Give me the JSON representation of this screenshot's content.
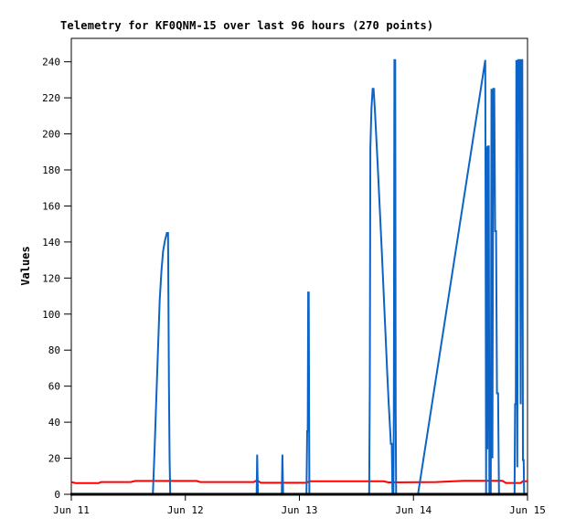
{
  "chart_data": {
    "type": "line",
    "title": "Telemetry for KF0QNM-15 over last 96 hours (270 points)",
    "ylabel": "Values",
    "xlabel": "",
    "grid": false,
    "legend": "none",
    "ylim": [
      0,
      253
    ],
    "xlim_days": [
      0,
      4
    ],
    "y_ticks": [
      0,
      20,
      40,
      60,
      80,
      100,
      120,
      140,
      160,
      180,
      200,
      220,
      240
    ],
    "x_ticks": {
      "labels": [
        "Jun 11",
        "Jun 12",
        "Jun 13",
        "Jun 14",
        "Jun 15"
      ],
      "days": [
        0,
        1,
        2,
        3,
        4
      ]
    },
    "colors": {
      "series_blue": "#0c64c8",
      "series_red": "#ff0000",
      "axis": "#000000",
      "text": "#000000",
      "background": "#ffffff"
    },
    "series": [
      {
        "name": "red",
        "color_key": "series_red",
        "stroke_width": 2,
        "points": [
          [
            0,
            6.8
          ],
          [
            0.04,
            6.2
          ],
          [
            0.24,
            6.2
          ],
          [
            0.26,
            6.8
          ],
          [
            0.52,
            6.8
          ],
          [
            0.56,
            7.4
          ],
          [
            1.1,
            7.4
          ],
          [
            1.13,
            6.8
          ],
          [
            1.6,
            6.8
          ],
          [
            1.63,
            7.8
          ],
          [
            1.66,
            6.4
          ],
          [
            2.06,
            6.4
          ],
          [
            2.09,
            7.2
          ],
          [
            2.74,
            7.2
          ],
          [
            2.78,
            6.6
          ],
          [
            3.2,
            6.8
          ],
          [
            3.44,
            7.5
          ],
          [
            3.78,
            7.5
          ],
          [
            3.81,
            6.3
          ],
          [
            3.94,
            6.3
          ],
          [
            3.96,
            7.2
          ],
          [
            4.0,
            7.2
          ]
        ]
      },
      {
        "name": "blue",
        "color_key": "series_blue",
        "stroke_width": 2,
        "points": [
          [
            0,
            0
          ],
          [
            0.715,
            0
          ],
          [
            0.73,
            25
          ],
          [
            0.745,
            52
          ],
          [
            0.76,
            80
          ],
          [
            0.775,
            108
          ],
          [
            0.79,
            124
          ],
          [
            0.805,
            135
          ],
          [
            0.822,
            141
          ],
          [
            0.838,
            145
          ],
          [
            0.848,
            145
          ],
          [
            0.856,
            60
          ],
          [
            0.862,
            20
          ],
          [
            0.867,
            0
          ],
          [
            1.625,
            0
          ],
          [
            1.63,
            22
          ],
          [
            1.636,
            0
          ],
          [
            1.845,
            0
          ],
          [
            1.851,
            22
          ],
          [
            1.857,
            0
          ],
          [
            2.062,
            0
          ],
          [
            2.068,
            35
          ],
          [
            2.073,
            35
          ],
          [
            2.077,
            112
          ],
          [
            2.082,
            112
          ],
          [
            2.087,
            0
          ],
          [
            2.612,
            0
          ],
          [
            2.617,
            60
          ],
          [
            2.622,
            192
          ],
          [
            2.632,
            214
          ],
          [
            2.642,
            225
          ],
          [
            2.65,
            225
          ],
          [
            2.662,
            213
          ],
          [
            2.674,
            198
          ],
          [
            2.686,
            183
          ],
          [
            2.698,
            167
          ],
          [
            2.71,
            151
          ],
          [
            2.722,
            135
          ],
          [
            2.734,
            118
          ],
          [
            2.746,
            101
          ],
          [
            2.758,
            84
          ],
          [
            2.77,
            67
          ],
          [
            2.782,
            51
          ],
          [
            2.794,
            37
          ],
          [
            2.802,
            28
          ],
          [
            2.81,
            28
          ],
          [
            2.816,
            0
          ],
          [
            2.824,
            0
          ],
          [
            2.828,
            46
          ],
          [
            2.833,
            241
          ],
          [
            2.84,
            241
          ],
          [
            2.844,
            46
          ],
          [
            2.848,
            0
          ],
          [
            3.04,
            0
          ],
          [
            3.63,
            241
          ],
          [
            3.637,
            0
          ],
          [
            3.642,
            193
          ],
          [
            3.648,
            25
          ],
          [
            3.654,
            193
          ],
          [
            3.66,
            193
          ],
          [
            3.666,
            0
          ],
          [
            3.678,
            0
          ],
          [
            3.684,
            225
          ],
          [
            3.692,
            20
          ],
          [
            3.7,
            225
          ],
          [
            3.708,
            225
          ],
          [
            3.716,
            146
          ],
          [
            3.724,
            146
          ],
          [
            3.732,
            56
          ],
          [
            3.742,
            56
          ],
          [
            3.75,
            0
          ],
          [
            3.886,
            0
          ],
          [
            3.891,
            50
          ],
          [
            3.897,
            50
          ],
          [
            3.902,
            241
          ],
          [
            3.91,
            15
          ],
          [
            3.918,
            241
          ],
          [
            3.932,
            241
          ],
          [
            3.94,
            50
          ],
          [
            3.946,
            241
          ],
          [
            3.954,
            241
          ],
          [
            3.96,
            19
          ],
          [
            3.966,
            19
          ],
          [
            3.97,
            0
          ]
        ]
      }
    ]
  }
}
